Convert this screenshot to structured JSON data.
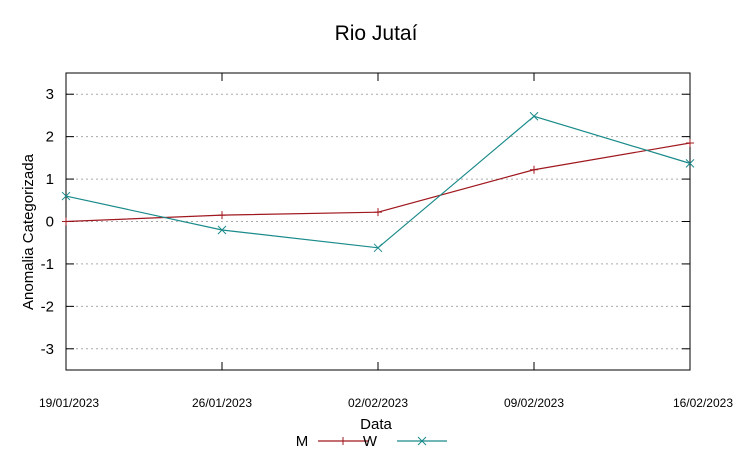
{
  "chart_data": {
    "type": "line",
    "title": "Rio Jutaí",
    "xlabel": "Data",
    "ylabel": "Anomalia Categorizada",
    "categories": [
      "19/01/2023",
      "26/01/2023",
      "02/02/2023",
      "09/02/2023",
      "16/02/2023"
    ],
    "yticks": [
      "3",
      "2",
      "1",
      "0",
      "-1",
      "-2",
      "-3"
    ],
    "ylim": [
      -3.5,
      3.5
    ],
    "grid": true,
    "legend_position": "bottom-center",
    "series": [
      {
        "name": "M",
        "color": "#a0181f",
        "marker": "plus",
        "values": [
          0.0,
          0.15,
          0.22,
          1.22,
          1.85
        ]
      },
      {
        "name": "W",
        "color": "#1a8a8a",
        "marker": "cross",
        "values": [
          0.6,
          -0.2,
          -0.62,
          2.48,
          1.37
        ]
      }
    ]
  }
}
